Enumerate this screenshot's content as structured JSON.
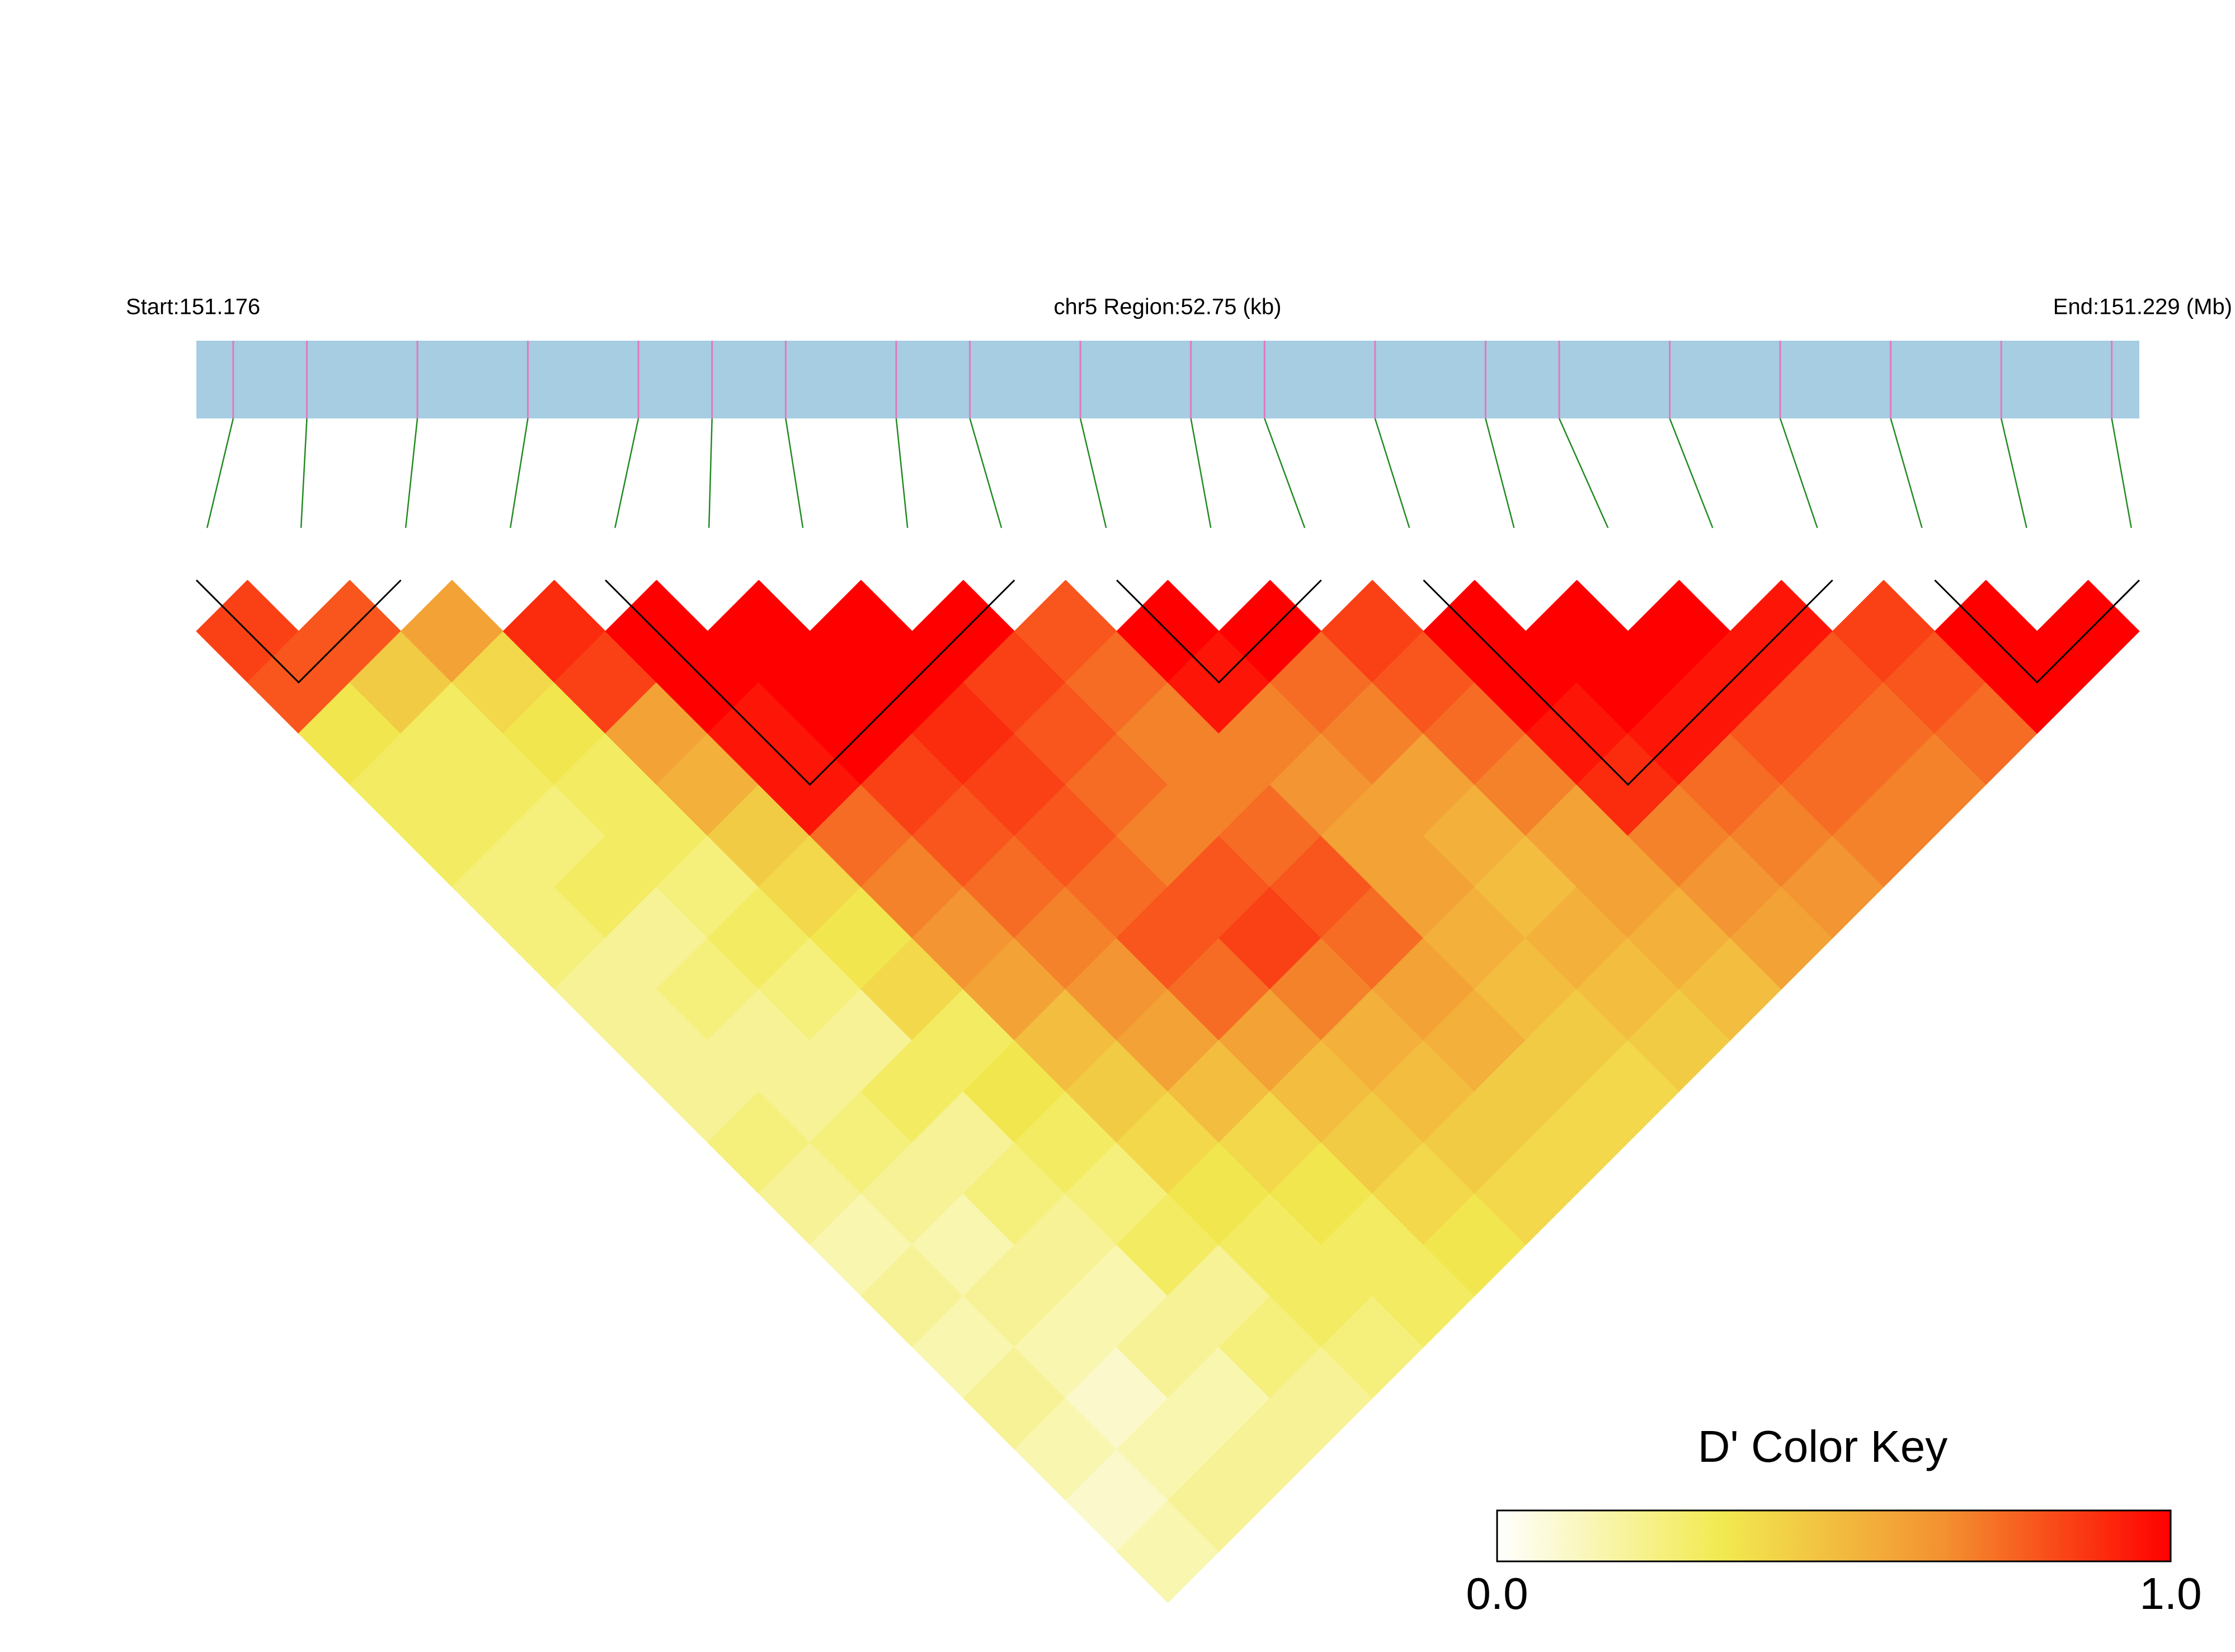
{
  "chart_data": {
    "type": "ld_heatmap",
    "start_label": "Start:151.176",
    "region_label": "chr5 Region:52.75 (kb)",
    "end_label": "End:151.229 (Mb)",
    "xlim": [
      0,
      52.75
    ],
    "positions": [
      1,
      3,
      6,
      9,
      12,
      14,
      16,
      19,
      21,
      24,
      27,
      29,
      32,
      35,
      37,
      40,
      43,
      46,
      49,
      52
    ],
    "matrix": [
      [
        0.85,
        0.8,
        0.35,
        0.3,
        0.3,
        0.25,
        0.25,
        0.2,
        0.2,
        0.2,
        0.25,
        0.2,
        0.15,
        0.2,
        0.15,
        0.2,
        0.15,
        0.1,
        0.15
      ],
      [
        0.8,
        0.45,
        0.3,
        0.3,
        0.25,
        0.3,
        0.2,
        0.25,
        0.2,
        0.2,
        0.25,
        0.2,
        0.15,
        0.2,
        0.15,
        0.1,
        0.15,
        0.2
      ],
      [
        0.6,
        0.4,
        0.35,
        0.3,
        0.3,
        0.25,
        0.3,
        0.25,
        0.2,
        0.3,
        0.2,
        0.25,
        0.2,
        0.15,
        0.2,
        0.15,
        0.2
      ],
      [
        0.9,
        0.85,
        0.6,
        0.55,
        0.45,
        0.4,
        0.35,
        0.4,
        0.3,
        0.35,
        0.3,
        0.25,
        0.3,
        0.2,
        0.25,
        0.2
      ],
      [
        1,
        1,
        0.95,
        0.95,
        0.75,
        0.7,
        0.65,
        0.6,
        0.5,
        0.45,
        0.4,
        0.35,
        0.3,
        0.3,
        0.25
      ],
      [
        1,
        1,
        1,
        0.85,
        0.8,
        0.75,
        0.7,
        0.65,
        0.6,
        0.5,
        0.4,
        0.35,
        0.3,
        0.3
      ],
      [
        1,
        1,
        0.9,
        0.85,
        0.8,
        0.75,
        0.8,
        0.75,
        0.6,
        0.5,
        0.45,
        0.4,
        0.35
      ],
      [
        1,
        0.85,
        0.8,
        0.75,
        0.7,
        0.8,
        0.85,
        0.7,
        0.55,
        0.5,
        0.45,
        0.4
      ],
      [
        0.8,
        0.75,
        0.7,
        0.7,
        0.75,
        0.8,
        0.75,
        0.6,
        0.55,
        0.45,
        0.4
      ],
      [
        1,
        0.95,
        0.7,
        0.65,
        0.6,
        0.6,
        0.55,
        0.5,
        0.45,
        0.4
      ],
      [
        1,
        0.75,
        0.7,
        0.6,
        0.55,
        0.5,
        0.55,
        0.5,
        0.45
      ],
      [
        0.85,
        0.8,
        0.75,
        0.7,
        0.6,
        0.6,
        0.55,
        0.5
      ],
      [
        1,
        1,
        0.95,
        0.9,
        0.7,
        0.65,
        0.6
      ],
      [
        1,
        1,
        0.95,
        0.75,
        0.7,
        0.65
      ],
      [
        1,
        0.95,
        0.8,
        0.75,
        0.7
      ],
      [
        0.95,
        0.8,
        0.75,
        0.7
      ],
      [
        0.85,
        0.8,
        0.75
      ],
      [
        1,
        1
      ],
      [
        1
      ]
    ],
    "blocks": [
      [
        0,
        2
      ],
      [
        4,
        8
      ],
      [
        9,
        11
      ],
      [
        12,
        16
      ],
      [
        17,
        19
      ]
    ],
    "bar_color": "#a6cde2",
    "marker_color": "#e377c2",
    "connector_color": "#228b22",
    "block_color": "#000000",
    "colorscale": {
      "title": "D' Color Key",
      "colors": [
        "#ffffff",
        "#f2ea50",
        "#f39030",
        "#ff0000"
      ],
      "lim": [
        0,
        1
      ],
      "ticks": [
        {
          "value": 0,
          "label": "0.0"
        },
        {
          "value": 1,
          "label": "1.0"
        }
      ]
    }
  }
}
